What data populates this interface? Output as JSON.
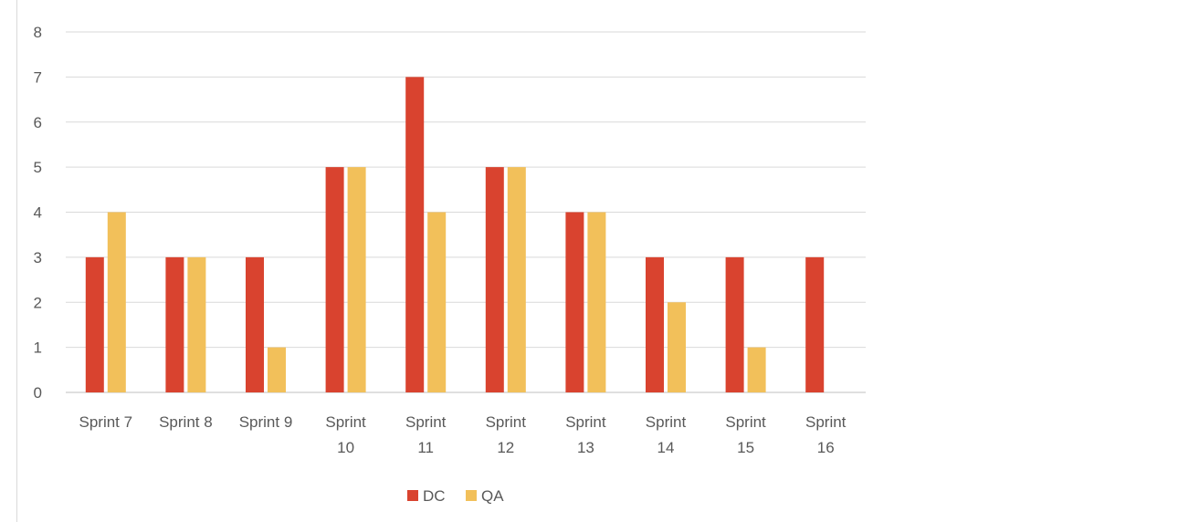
{
  "chart_data": {
    "type": "bar",
    "categories": [
      [
        "Sprint 7"
      ],
      [
        "Sprint 8"
      ],
      [
        "Sprint 9"
      ],
      [
        "Sprint",
        "10"
      ],
      [
        "Sprint",
        "11"
      ],
      [
        "Sprint",
        "12"
      ],
      [
        "Sprint",
        "13"
      ],
      [
        "Sprint",
        "14"
      ],
      [
        "Sprint",
        "15"
      ],
      [
        "Sprint",
        "16"
      ]
    ],
    "series": [
      {
        "name": "DC",
        "color": "#d9432f",
        "values": [
          3,
          3,
          3,
          5,
          7,
          5,
          4,
          3,
          3,
          3
        ]
      },
      {
        "name": "QA",
        "color": "#f2c05a",
        "values": [
          4,
          3,
          1,
          5,
          4,
          5,
          4,
          2,
          1,
          0
        ]
      }
    ],
    "yticks": [
      "0",
      "1",
      "2",
      "3",
      "4",
      "5",
      "6",
      "7",
      "8"
    ],
    "ylim": [
      0,
      8
    ],
    "grid": true,
    "legend_position": "bottom"
  }
}
